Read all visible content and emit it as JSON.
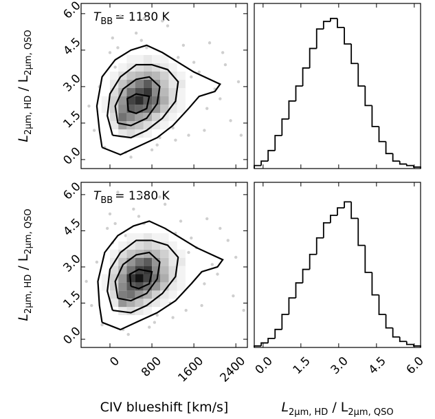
{
  "chart_data": [
    {
      "type": "scatter",
      "ylabel": [
        "L",
        "2μm, HD",
        " / L",
        "2μm, QSO"
      ],
      "annotation": [
        "T",
        "BB",
        "= 1180 K"
      ],
      "xlim": [
        -550,
        2620
      ],
      "ylim": [
        -0.37,
        6.42
      ],
      "xticks": [
        0,
        800,
        1600,
        2400
      ],
      "yticks": [
        {
          "value": 0,
          "label": "0.0"
        },
        {
          "value": 1.5,
          "label": "1.5"
        },
        {
          "value": 3,
          "label": "3.0"
        },
        {
          "value": 4.5,
          "label": "4.5"
        },
        {
          "value": 6,
          "label": "6.0"
        }
      ],
      "points_color": "#cfcfcf",
      "x": [
        -300,
        -100,
        100,
        300,
        500,
        700,
        900,
        1100,
        1300,
        1500,
        1700,
        1900,
        2100,
        2300,
        -200,
        0,
        200,
        400,
        600,
        800,
        1000,
        1200,
        1400,
        1600,
        1800,
        2000,
        2200,
        2500,
        -400,
        50,
        350,
        650,
        950,
        1250,
        1550,
        1850,
        2150,
        2450,
        150,
        750
      ],
      "y": [
        1.2,
        0.5,
        3.8,
        0.3,
        5.2,
        4.6,
        0.6,
        5.5,
        4.2,
        1.0,
        3.6,
        4.8,
        2.5,
        1.6,
        3.0,
        4.4,
        5.9,
        0.1,
        4.9,
        0.4,
        5.7,
        1.3,
        4.7,
        4.0,
        1.2,
        2.9,
        3.9,
        1.0,
        2.2,
        5.0,
        4.1,
        5.8,
        0.9,
        0.8,
        3.4,
        2.1,
        4.4,
        3.2,
        4.6,
        3.9
      ],
      "xbins": [
        -160,
        0,
        160,
        320,
        480,
        640,
        800,
        960,
        1120,
        1280,
        1440,
        1600
      ],
      "ybins": [
        0.9,
        1.24,
        1.58,
        1.92,
        2.26,
        2.6,
        2.94,
        3.28,
        3.62,
        3.96,
        4.3
      ],
      "density": [
        [
          0,
          0,
          0.1,
          0.15,
          0.1,
          0.05,
          0,
          0,
          0,
          0,
          0
        ],
        [
          0,
          0.1,
          0.4,
          0.3,
          0.25,
          0.15,
          0.1,
          0.05,
          0,
          0,
          0
        ],
        [
          0,
          0.15,
          0.6,
          0.5,
          0.4,
          0.35,
          0.2,
          0.1,
          0.05,
          0,
          0
        ],
        [
          0.05,
          0.2,
          0.5,
          0.7,
          0.65,
          0.6,
          0.45,
          0.25,
          0.1,
          0.05,
          0
        ],
        [
          0.05,
          0.2,
          0.45,
          0.8,
          0.9,
          0.7,
          0.6,
          0.35,
          0.15,
          0.05,
          0
        ],
        [
          0,
          0.15,
          0.35,
          0.6,
          0.75,
          0.85,
          0.5,
          0.3,
          0.15,
          0.05,
          0
        ],
        [
          0,
          0.1,
          0.25,
          0.4,
          0.55,
          0.7,
          0.45,
          0.25,
          0.1,
          0.1,
          0
        ],
        [
          0,
          0.05,
          0.15,
          0.25,
          0.3,
          0.35,
          0.3,
          0.2,
          0.1,
          0.05,
          0
        ],
        [
          0,
          0,
          0.05,
          0.1,
          0.15,
          0.2,
          0.15,
          0.1,
          0.05,
          0,
          0
        ],
        [
          0,
          0,
          0,
          0.05,
          0.05,
          0.1,
          0.05,
          0.05,
          0,
          0,
          0
        ]
      ],
      "contours": [
        {
          "x": [
            -150,
            -200,
            -250,
            -150,
            100,
            400,
            700,
            1000,
            1300,
            1600,
            1900,
            2100,
            2000,
            1700,
            1500,
            1200,
            900,
            500,
            200,
            -150
          ],
          "y": [
            0.5,
            1.2,
            2.2,
            3.4,
            4.1,
            4.5,
            4.7,
            4.4,
            4.0,
            3.6,
            3.3,
            3.1,
            2.8,
            2.6,
            2.1,
            1.4,
            0.9,
            0.5,
            0.2,
            0.5
          ]
        },
        {
          "x": [
            50,
            -50,
            0,
            200,
            500,
            800,
            1100,
            1300,
            1250,
            1000,
            700,
            400,
            50
          ],
          "y": [
            1.0,
            1.8,
            2.7,
            3.4,
            3.9,
            3.9,
            3.7,
            3.2,
            2.4,
            1.7,
            1.2,
            0.9,
            1.0
          ]
        },
        {
          "x": [
            150,
            100,
            250,
            500,
            750,
            950,
            900,
            700,
            400,
            150
          ],
          "y": [
            1.5,
            2.2,
            2.9,
            3.3,
            3.4,
            3.0,
            2.3,
            1.7,
            1.4,
            1.5
          ]
        },
        {
          "x": [
            350,
            330,
            500,
            750,
            700,
            500,
            350
          ],
          "y": [
            2.0,
            2.5,
            2.7,
            2.6,
            2.1,
            1.9,
            2.0
          ]
        }
      ],
      "contour_color": "#000000"
    },
    {
      "type": "histogram",
      "xlim": [
        -0.35,
        6.25
      ],
      "ylim": [
        0,
        1.1
      ],
      "color": "#000000",
      "bins": [
        -0.35,
        -0.075,
        0.2,
        0.475,
        0.75,
        1.025,
        1.3,
        1.575,
        1.85,
        2.125,
        2.4,
        2.675,
        2.95,
        3.225,
        3.5,
        3.775,
        4.05,
        4.325,
        4.6,
        4.875,
        5.15,
        5.425,
        5.7,
        5.975,
        6.25
      ],
      "values": [
        0.02,
        0.05,
        0.12,
        0.22,
        0.33,
        0.45,
        0.55,
        0.67,
        0.8,
        0.93,
        0.98,
        1.0,
        0.94,
        0.83,
        0.7,
        0.55,
        0.42,
        0.28,
        0.18,
        0.1,
        0.05,
        0.03,
        0.02,
        0.01
      ],
      "xticks": [
        0,
        1.5,
        3,
        4.5,
        6
      ]
    },
    {
      "type": "scatter",
      "ylabel": [
        "L",
        "2μm, HD",
        " / L",
        "2μm, QSO"
      ],
      "annotation": [
        "T",
        "BB",
        "= 1380 K"
      ],
      "xlabel": "CIV blueshift [km/s]",
      "xlim": [
        -550,
        2620
      ],
      "ylim": [
        -0.34,
        6.51
      ],
      "xticks": [
        0,
        800,
        1600,
        2400
      ],
      "yticks": [
        {
          "value": 0,
          "label": "0.0"
        },
        {
          "value": 1.5,
          "label": "1.5"
        },
        {
          "value": 3,
          "label": "3.0"
        },
        {
          "value": 4.5,
          "label": "4.5"
        },
        {
          "value": 6,
          "label": "6.0"
        }
      ],
      "points_color": "#cfcfcf",
      "x": [
        -350,
        -150,
        50,
        250,
        450,
        650,
        850,
        1050,
        1250,
        1450,
        1650,
        1850,
        2050,
        2350,
        -250,
        -50,
        150,
        350,
        550,
        750,
        950,
        1150,
        1350,
        1550,
        1750,
        1950,
        2250,
        2550,
        -450,
        0,
        300,
        600,
        900,
        1200,
        1500,
        1800,
        2100,
        2400,
        100,
        700
      ],
      "y": [
        1.4,
        0.6,
        4.0,
        0.4,
        5.4,
        4.8,
        0.7,
        5.6,
        4.4,
        1.2,
        3.8,
        5.0,
        2.7,
        1.8,
        3.2,
        4.6,
        6.1,
        0.2,
        5.1,
        0.5,
        5.9,
        1.5,
        4.9,
        4.2,
        1.4,
        3.1,
        4.1,
        1.2,
        2.4,
        5.2,
        4.3,
        6.0,
        1.0,
        0.9,
        3.6,
        2.3,
        4.6,
        3.4,
        4.8,
        4.1
      ],
      "xbins": [
        -160,
        0,
        160,
        320,
        480,
        640,
        800,
        960,
        1120,
        1280,
        1440,
        1600
      ],
      "ybins": [
        1.0,
        1.34,
        1.68,
        2.02,
        2.36,
        2.7,
        3.04,
        3.38,
        3.72,
        4.06,
        4.4
      ],
      "density": [
        [
          0,
          0,
          0.1,
          0.15,
          0.1,
          0.05,
          0,
          0,
          0,
          0,
          0
        ],
        [
          0,
          0.1,
          0.45,
          0.35,
          0.25,
          0.15,
          0.1,
          0.05,
          0,
          0,
          0
        ],
        [
          0,
          0.15,
          0.55,
          0.6,
          0.45,
          0.35,
          0.2,
          0.1,
          0.05,
          0,
          0
        ],
        [
          0.05,
          0.2,
          0.5,
          0.7,
          0.75,
          0.6,
          0.45,
          0.25,
          0.1,
          0.05,
          0
        ],
        [
          0.05,
          0.2,
          0.45,
          0.85,
          1.0,
          0.8,
          0.6,
          0.35,
          0.15,
          0.05,
          0
        ],
        [
          0,
          0.15,
          0.35,
          0.6,
          0.8,
          0.85,
          0.5,
          0.3,
          0.15,
          0.05,
          0
        ],
        [
          0,
          0.1,
          0.25,
          0.45,
          0.6,
          0.7,
          0.45,
          0.25,
          0.1,
          0.1,
          0
        ],
        [
          0,
          0.05,
          0.15,
          0.25,
          0.3,
          0.35,
          0.3,
          0.2,
          0.1,
          0.05,
          0
        ],
        [
          0,
          0,
          0.05,
          0.1,
          0.15,
          0.2,
          0.15,
          0.1,
          0.05,
          0,
          0
        ],
        [
          0,
          0,
          0,
          0.05,
          0.05,
          0.1,
          0.05,
          0.05,
          0,
          0,
          0
        ]
      ],
      "contours": [
        {
          "x": [
            -150,
            -200,
            -230,
            -100,
            150,
            450,
            750,
            1050,
            1350,
            1650,
            1950,
            2150,
            2050,
            1750,
            1550,
            1250,
            900,
            500,
            200,
            -150
          ],
          "y": [
            0.7,
            1.4,
            2.4,
            3.6,
            4.3,
            4.7,
            4.9,
            4.6,
            4.2,
            3.8,
            3.5,
            3.3,
            3.0,
            2.8,
            2.3,
            1.6,
            1.1,
            0.7,
            0.4,
            0.7
          ]
        },
        {
          "x": [
            50,
            -50,
            0,
            200,
            500,
            800,
            1100,
            1300,
            1250,
            1000,
            700,
            400,
            50
          ],
          "y": [
            1.2,
            2.0,
            2.9,
            3.6,
            4.1,
            4.1,
            3.9,
            3.4,
            2.6,
            1.9,
            1.4,
            1.1,
            1.2
          ]
        },
        {
          "x": [
            150,
            100,
            250,
            500,
            750,
            950,
            900,
            700,
            400,
            150
          ],
          "y": [
            1.7,
            2.4,
            3.1,
            3.5,
            3.6,
            3.2,
            2.5,
            1.9,
            1.6,
            1.7
          ]
        },
        {
          "x": [
            400,
            380,
            550,
            800,
            750,
            550,
            400
          ],
          "y": [
            2.2,
            2.7,
            2.9,
            2.8,
            2.3,
            2.1,
            2.2
          ]
        }
      ],
      "contour_color": "#000000"
    },
    {
      "type": "histogram",
      "xlim": [
        -0.35,
        6.25
      ],
      "ylim": [
        0,
        1.1
      ],
      "color": "#000000",
      "xlabel": [
        "L",
        "2μm, HD",
        " / L",
        "2μm, QSO"
      ],
      "bins": [
        -0.35,
        -0.075,
        0.2,
        0.475,
        0.75,
        1.025,
        1.3,
        1.575,
        1.85,
        2.125,
        2.4,
        2.675,
        2.95,
        3.225,
        3.5,
        3.775,
        4.05,
        4.325,
        4.6,
        4.875,
        5.15,
        5.425,
        5.7,
        5.975,
        6.25
      ],
      "values": [
        0.01,
        0.03,
        0.06,
        0.12,
        0.22,
        0.33,
        0.43,
        0.52,
        0.62,
        0.73,
        0.83,
        0.88,
        0.93,
        0.97,
        0.86,
        0.68,
        0.5,
        0.35,
        0.22,
        0.13,
        0.07,
        0.04,
        0.02,
        0.01
      ],
      "xticks": [
        {
          "value": 0,
          "label": "0.0"
        },
        {
          "value": 1.5,
          "label": "1.5"
        },
        {
          "value": 3,
          "label": "3.0"
        },
        {
          "value": 4.5,
          "label": "4.5"
        },
        {
          "value": 6,
          "label": "6.0"
        }
      ]
    }
  ]
}
